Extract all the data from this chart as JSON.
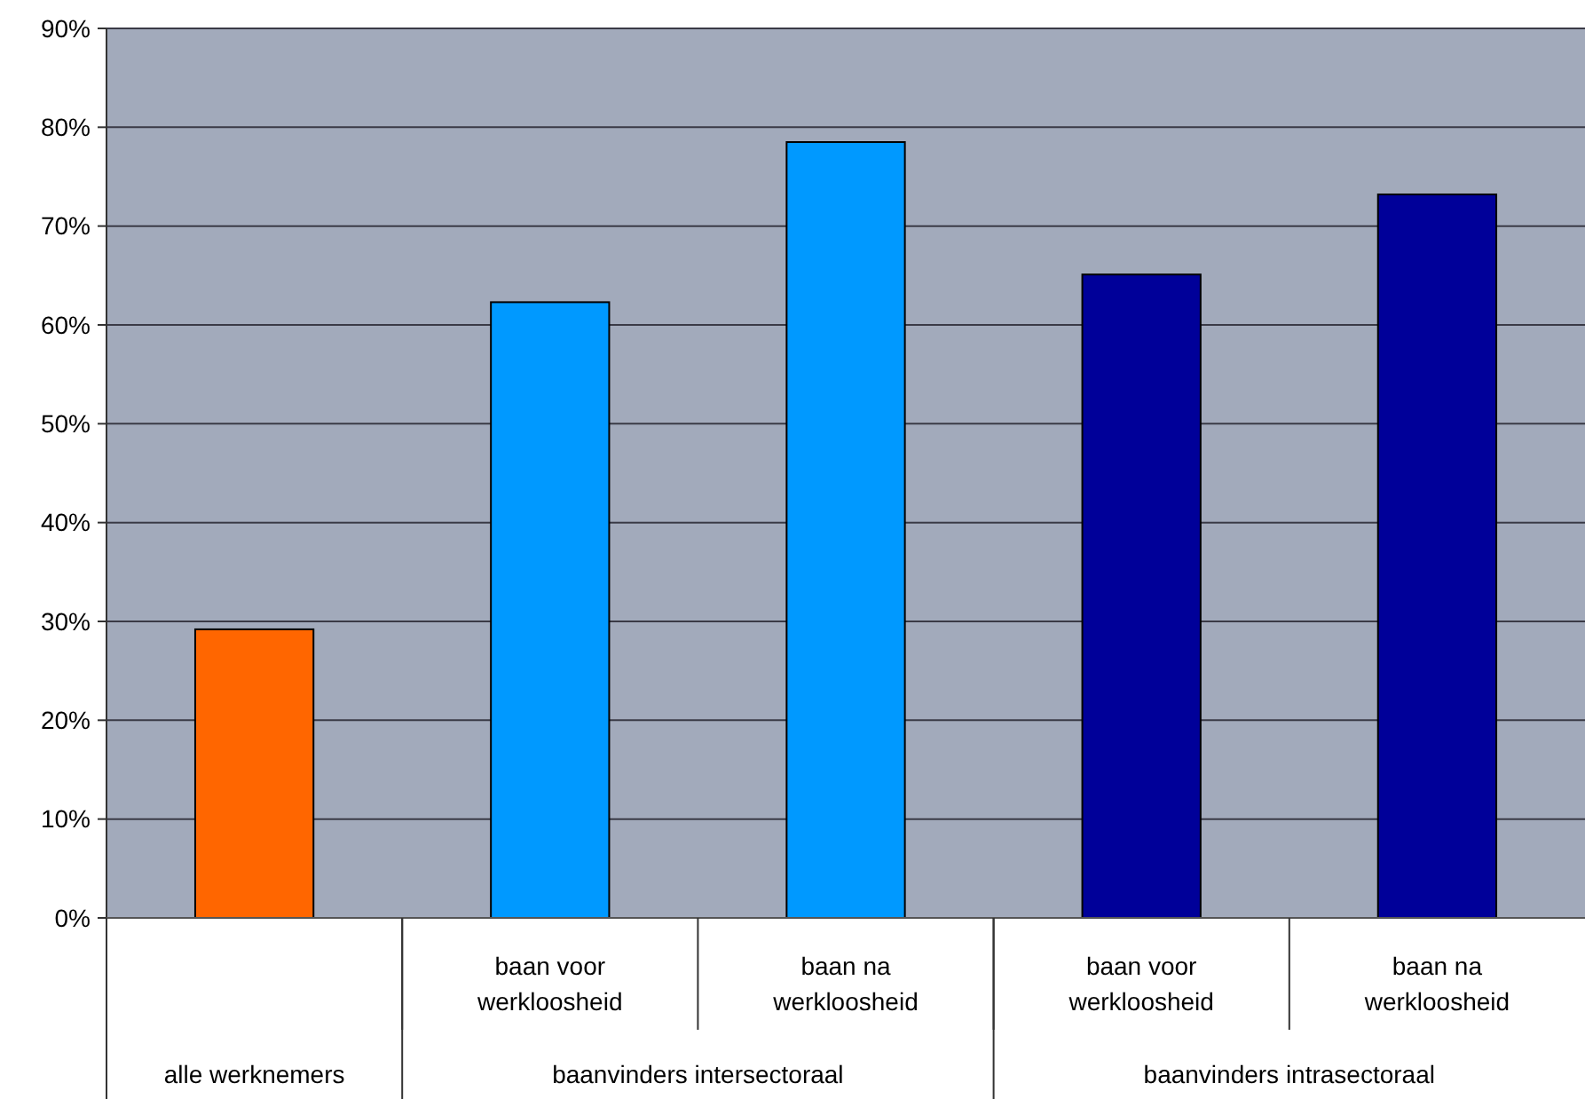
{
  "chart_data": {
    "type": "bar",
    "categories": [
      null,
      "baan voor werkloosheid",
      "baan na werkloosheid",
      "baan voor werkloosheid",
      "baan na werkloosheid"
    ],
    "values": [
      29.2,
      62.3,
      78.5,
      65.1,
      73.2
    ],
    "colors": [
      "#ff6600",
      "#0099ff",
      "#0099ff",
      "#000099",
      "#000099"
    ],
    "ylim": [
      0,
      90
    ],
    "yticks": [
      {
        "value": 0,
        "label": "0%"
      },
      {
        "value": 10,
        "label": "10%"
      },
      {
        "value": 20,
        "label": "20%"
      },
      {
        "value": 30,
        "label": "30%"
      },
      {
        "value": 40,
        "label": "40%"
      },
      {
        "value": 50,
        "label": "50%"
      },
      {
        "value": 60,
        "label": "60%"
      },
      {
        "value": 70,
        "label": "70%"
      },
      {
        "value": 80,
        "label": "80%"
      },
      {
        "value": 90,
        "label": "90%"
      }
    ],
    "grid": "y",
    "annotations": [
      "alle werknemers",
      "baanvinders intersectoraal",
      "baanvinders intrasectoraal"
    ]
  }
}
